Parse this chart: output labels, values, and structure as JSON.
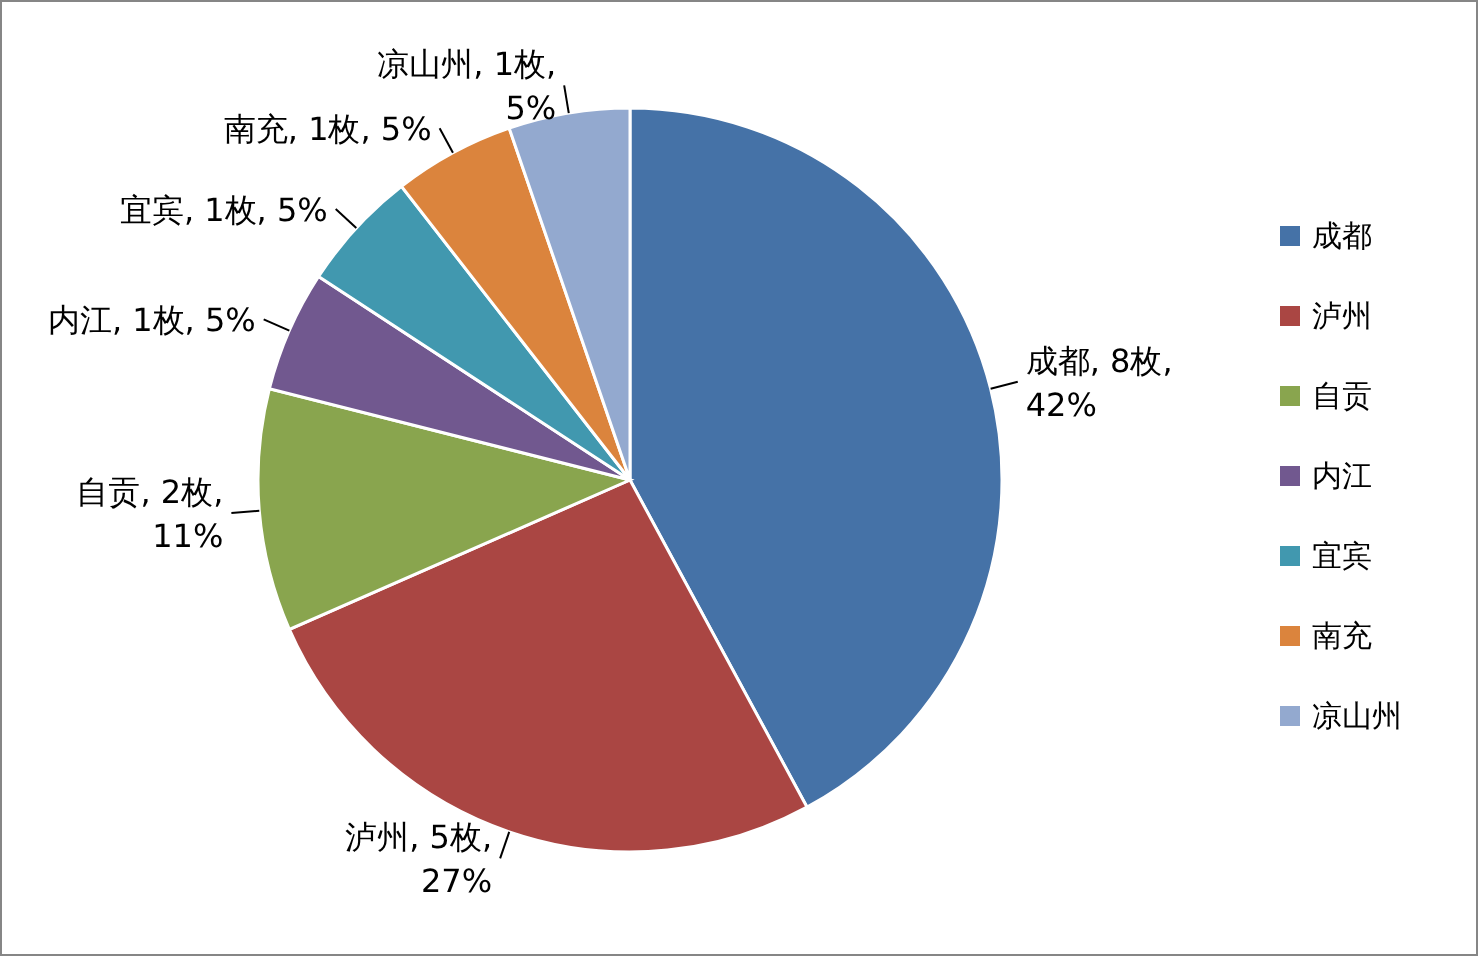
{
  "chart_data": {
    "type": "pie",
    "categories": [
      "成都",
      "泸州",
      "自贡",
      "内江",
      "宜宾",
      "南充",
      "凉山州"
    ],
    "values": [
      8,
      5,
      2,
      1,
      1,
      1,
      1
    ],
    "colors": [
      "#4572a7",
      "#aa4643",
      "#89a54e",
      "#71588f",
      "#4198af",
      "#db843d",
      "#93a9cf"
    ],
    "value_labels": [
      "成都, 8枚,\n42%",
      "泸州, 5枚,\n27%",
      "自贡, 2枚,\n11%",
      "内江, 1枚, 5%",
      "宜宾, 1枚, 5%",
      "南充, 1枚, 5%",
      "凉山州, 1枚,\n5%"
    ],
    "legend": "right"
  }
}
